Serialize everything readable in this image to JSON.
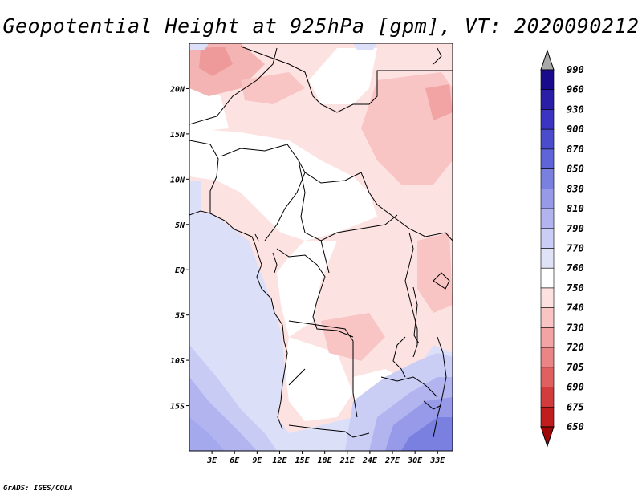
{
  "title": "Geopotential Height at 925hPa [gpm], VT: 2020090212",
  "credit": "GrADS: IGES/COLA",
  "map": {
    "lat_labels": [
      "20N",
      "15N",
      "10N",
      "5N",
      "EQ",
      "5S",
      "10S",
      "15S"
    ],
    "lat_values": [
      20,
      15,
      10,
      5,
      0,
      -5,
      -10,
      -15
    ],
    "lon_labels": [
      "3E",
      "6E",
      "9E",
      "12E",
      "15E",
      "18E",
      "21E",
      "24E",
      "27E",
      "30E",
      "33E"
    ],
    "lon_values": [
      3,
      6,
      9,
      12,
      15,
      18,
      21,
      24,
      27,
      30,
      33
    ],
    "lat_range": [
      -20,
      25
    ],
    "lon_range": [
      0,
      35
    ]
  },
  "colorbar": {
    "levels": [
      "990",
      "960",
      "930",
      "900",
      "870",
      "850",
      "830",
      "810",
      "790",
      "770",
      "760",
      "750",
      "740",
      "730",
      "720",
      "705",
      "690",
      "675",
      "650"
    ],
    "colors": [
      "#1a0a8c",
      "#2a1ea8",
      "#3a34c0",
      "#4a4ccc",
      "#5f64d8",
      "#7a80e0",
      "#969ae8",
      "#b2b4f0",
      "#cacdf4",
      "#e0e2f8",
      "#ffffff",
      "#fde0e0",
      "#f9c4c4",
      "#f2a4a4",
      "#eb8484",
      "#e06060",
      "#d23c3c",
      "#c01e1e",
      "#a00808"
    ],
    "top_arrow_color": "#a8a8a8",
    "bottom_arrow_color": "#a00808"
  }
}
